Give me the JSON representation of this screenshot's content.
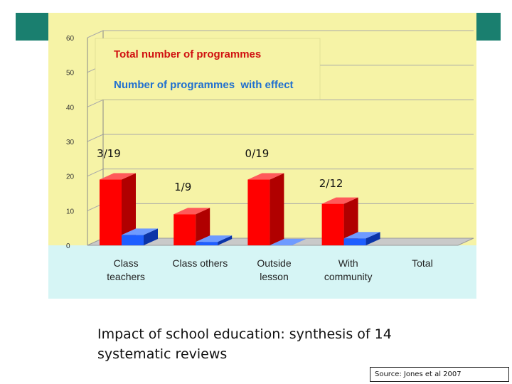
{
  "caption": {
    "line1": "Impact of school education: synthesis of 14",
    "line2": "systematic reviews"
  },
  "source": "Source: Jones et al 2007",
  "colors": {
    "teal": "#1a7f6f",
    "plot_bg": "#f6f3a6",
    "floor_bg": "#d6f5f5",
    "total_series": "#ff0000",
    "effect_series": "#1e5eff",
    "legend_total_text": "#d01010",
    "legend_effect_text": "#1f6fd0"
  },
  "chart_data": {
    "type": "bar",
    "categories": [
      "Class teachers",
      "Class others",
      "Outside lesson",
      "With community",
      "Total"
    ],
    "category_labels": [
      [
        "Class",
        "teachers"
      ],
      [
        "Class others"
      ],
      [
        "Outside",
        "lesson"
      ],
      [
        "With",
        "community"
      ],
      [
        "Total"
      ]
    ],
    "series": [
      {
        "name": "Total number of programmes",
        "values": [
          19,
          9,
          19,
          12,
          null
        ]
      },
      {
        "name": "Number of programmes  with effect",
        "values": [
          3,
          1,
          0,
          2,
          null
        ]
      }
    ],
    "annotations": [
      "3/19",
      "1/9",
      "0/19",
      "2/12"
    ],
    "ylim": [
      0,
      60
    ],
    "yticks": [
      "0",
      "10",
      "20",
      "30",
      "40",
      "50",
      "60"
    ],
    "grid": true,
    "legend_position": "top-left",
    "three_d": true
  }
}
